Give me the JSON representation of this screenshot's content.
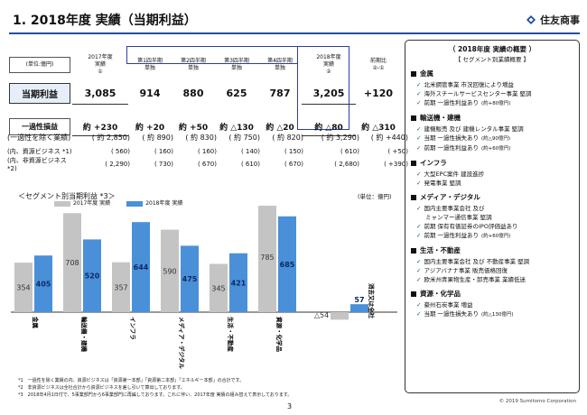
{
  "header": {
    "title": "1. 2018年度 実績（当期利益）",
    "logo_text": "住友商事"
  },
  "table": {
    "unit": "(単位:億円)",
    "col_fy2017": [
      "2017年度",
      "実績",
      "①"
    ],
    "quarters": [
      [
        "第1四半期",
        "単独"
      ],
      [
        "第2四半期",
        "単独"
      ],
      [
        "第3四半期",
        "単独"
      ],
      [
        "第4四半期",
        "単独"
      ]
    ],
    "col_fy2018": [
      "2018年度",
      "実績",
      "②"
    ],
    "col_diff": [
      "前期比",
      "②-①"
    ],
    "row_profit": {
      "label": "当期利益",
      "fy2017": "3,085",
      "q1": "914",
      "q2": "880",
      "q3": "625",
      "q4": "787",
      "fy2018": "3,205",
      "diff": "+120"
    },
    "row_onetime": {
      "label": "一過性損益",
      "fy2017": "約 +230",
      "q1": "約 +20",
      "q2": "約 +50",
      "q3": "約 △130",
      "q4": "約 △20",
      "fy2018": "約 △80",
      "diff": "約 △310"
    },
    "row_excl": {
      "label": "(一過性を除く業績)",
      "fy2017": "( 約 2,850)",
      "q1": "( 約 890)",
      "q2": "( 約 830)",
      "q3": "( 約 750)",
      "q4": "( 約 820)",
      "fy2018": "( 約 3,290)",
      "diff": "( 約 +440)"
    },
    "row_resource": {
      "label": "(内、資源ビジネス *1)",
      "fy2017": "( 560)",
      "q1": "( 160)",
      "q2": "( 160)",
      "q3": "( 140)",
      "q4": "( 150)",
      "fy2018": "( 610)",
      "diff": "( +50)"
    },
    "row_nonresource": {
      "label": "(内、非資源ビジネス *2)",
      "fy2017": "( 2,290)",
      "q1": "( 730)",
      "q2": "( 670)",
      "q3": "( 610)",
      "q4": "( 670)",
      "fy2018": "( 2,680)",
      "diff": "( +390)"
    }
  },
  "chart_header": {
    "title": "＜セグメント別当期利益 *3＞",
    "unit": "(単位：億円)"
  },
  "chart_data": {
    "type": "bar",
    "categories": [
      "金属",
      "輸送機・建機",
      "インフラ",
      "メディア・デジタル",
      "生活・不動産",
      "資源・化学品",
      "消去又は全社"
    ],
    "series": [
      {
        "name": "2017年度 実績",
        "values": [
          354,
          708,
          357,
          590,
          345,
          785,
          -54
        ],
        "labels": [
          "354",
          "708",
          "357",
          "590",
          "345",
          "785",
          "△54"
        ]
      },
      {
        "name": "2018年度 実績",
        "values": [
          405,
          520,
          644,
          475,
          421,
          685,
          57
        ],
        "labels": [
          "405",
          "520",
          "644",
          "475",
          "421",
          "685",
          "57"
        ]
      }
    ],
    "colors": [
      "#c4c4c4",
      "#4a90d9"
    ]
  },
  "notes": [
    "*1　一過性を除く業績の内、資源ビジネスは「資源第一本部」「資源第二本部」「エネルギー本部」の合計です。",
    "*2　非資源ビジネスは全社合計から資源ビジネスを差し引いて算出しております。",
    "*3　2018年4月1日付で、5事業部門から6事業部門に再編しております。これに伴い、2017年度 実績の組み替えて表示しております。"
  ],
  "page_number": "3",
  "copyright": "© 2019 Sumitomo Corporation",
  "summary": {
    "title": "（ 2018年度 実績の概要 ）",
    "subtitle": "【 セグメント別業績概要 】",
    "sections": [
      {
        "name": "金属",
        "items": [
          {
            "text": "北米鋼管事業 市況回復により増益"
          },
          {
            "text": "海外スチールサービスセンター事業 堅調"
          },
          {
            "text": "前期 一過性利益あり",
            "note": "(約+80億円)"
          }
        ]
      },
      {
        "name": "輸送機・建機",
        "items": [
          {
            "text": "建機販売 及び 建機レンタル事業 堅調"
          },
          {
            "text": "当期 一過性損失あり",
            "note": "(約△90億円)"
          },
          {
            "text": "前期 一過性利益あり",
            "note": "(約+60億円)"
          }
        ]
      },
      {
        "name": "インフラ",
        "items": [
          {
            "text": "大型EPC案件 建設進捗"
          },
          {
            "text": "発電事業 堅調"
          }
        ]
      },
      {
        "name": "メディア・デジタル",
        "items": [
          {
            "text": "国内主要事業会社 及び"
          },
          {
            "text": "ミャンマー通信事業 堅調",
            "cont": true
          },
          {
            "text": "前期 保有有価証券のIPO評価益あり"
          },
          {
            "text": "前期 一過性利益あり",
            "note": "(約+60億円)"
          }
        ]
      },
      {
        "name": "生活・不動産",
        "items": [
          {
            "text": "国内主要事業会社 及び 不動産事業 堅調"
          },
          {
            "text": "アジアバナナ事業 販売価格回復"
          },
          {
            "text": "欧米州青果物生産・卸売事業 業績低迷"
          }
        ]
      },
      {
        "name": "資源・化学品",
        "items": [
          {
            "text": "豪州石炭事業 増益"
          },
          {
            "text": "当期 一過性損失あり",
            "note": "(約△130億円)"
          }
        ]
      }
    ]
  }
}
